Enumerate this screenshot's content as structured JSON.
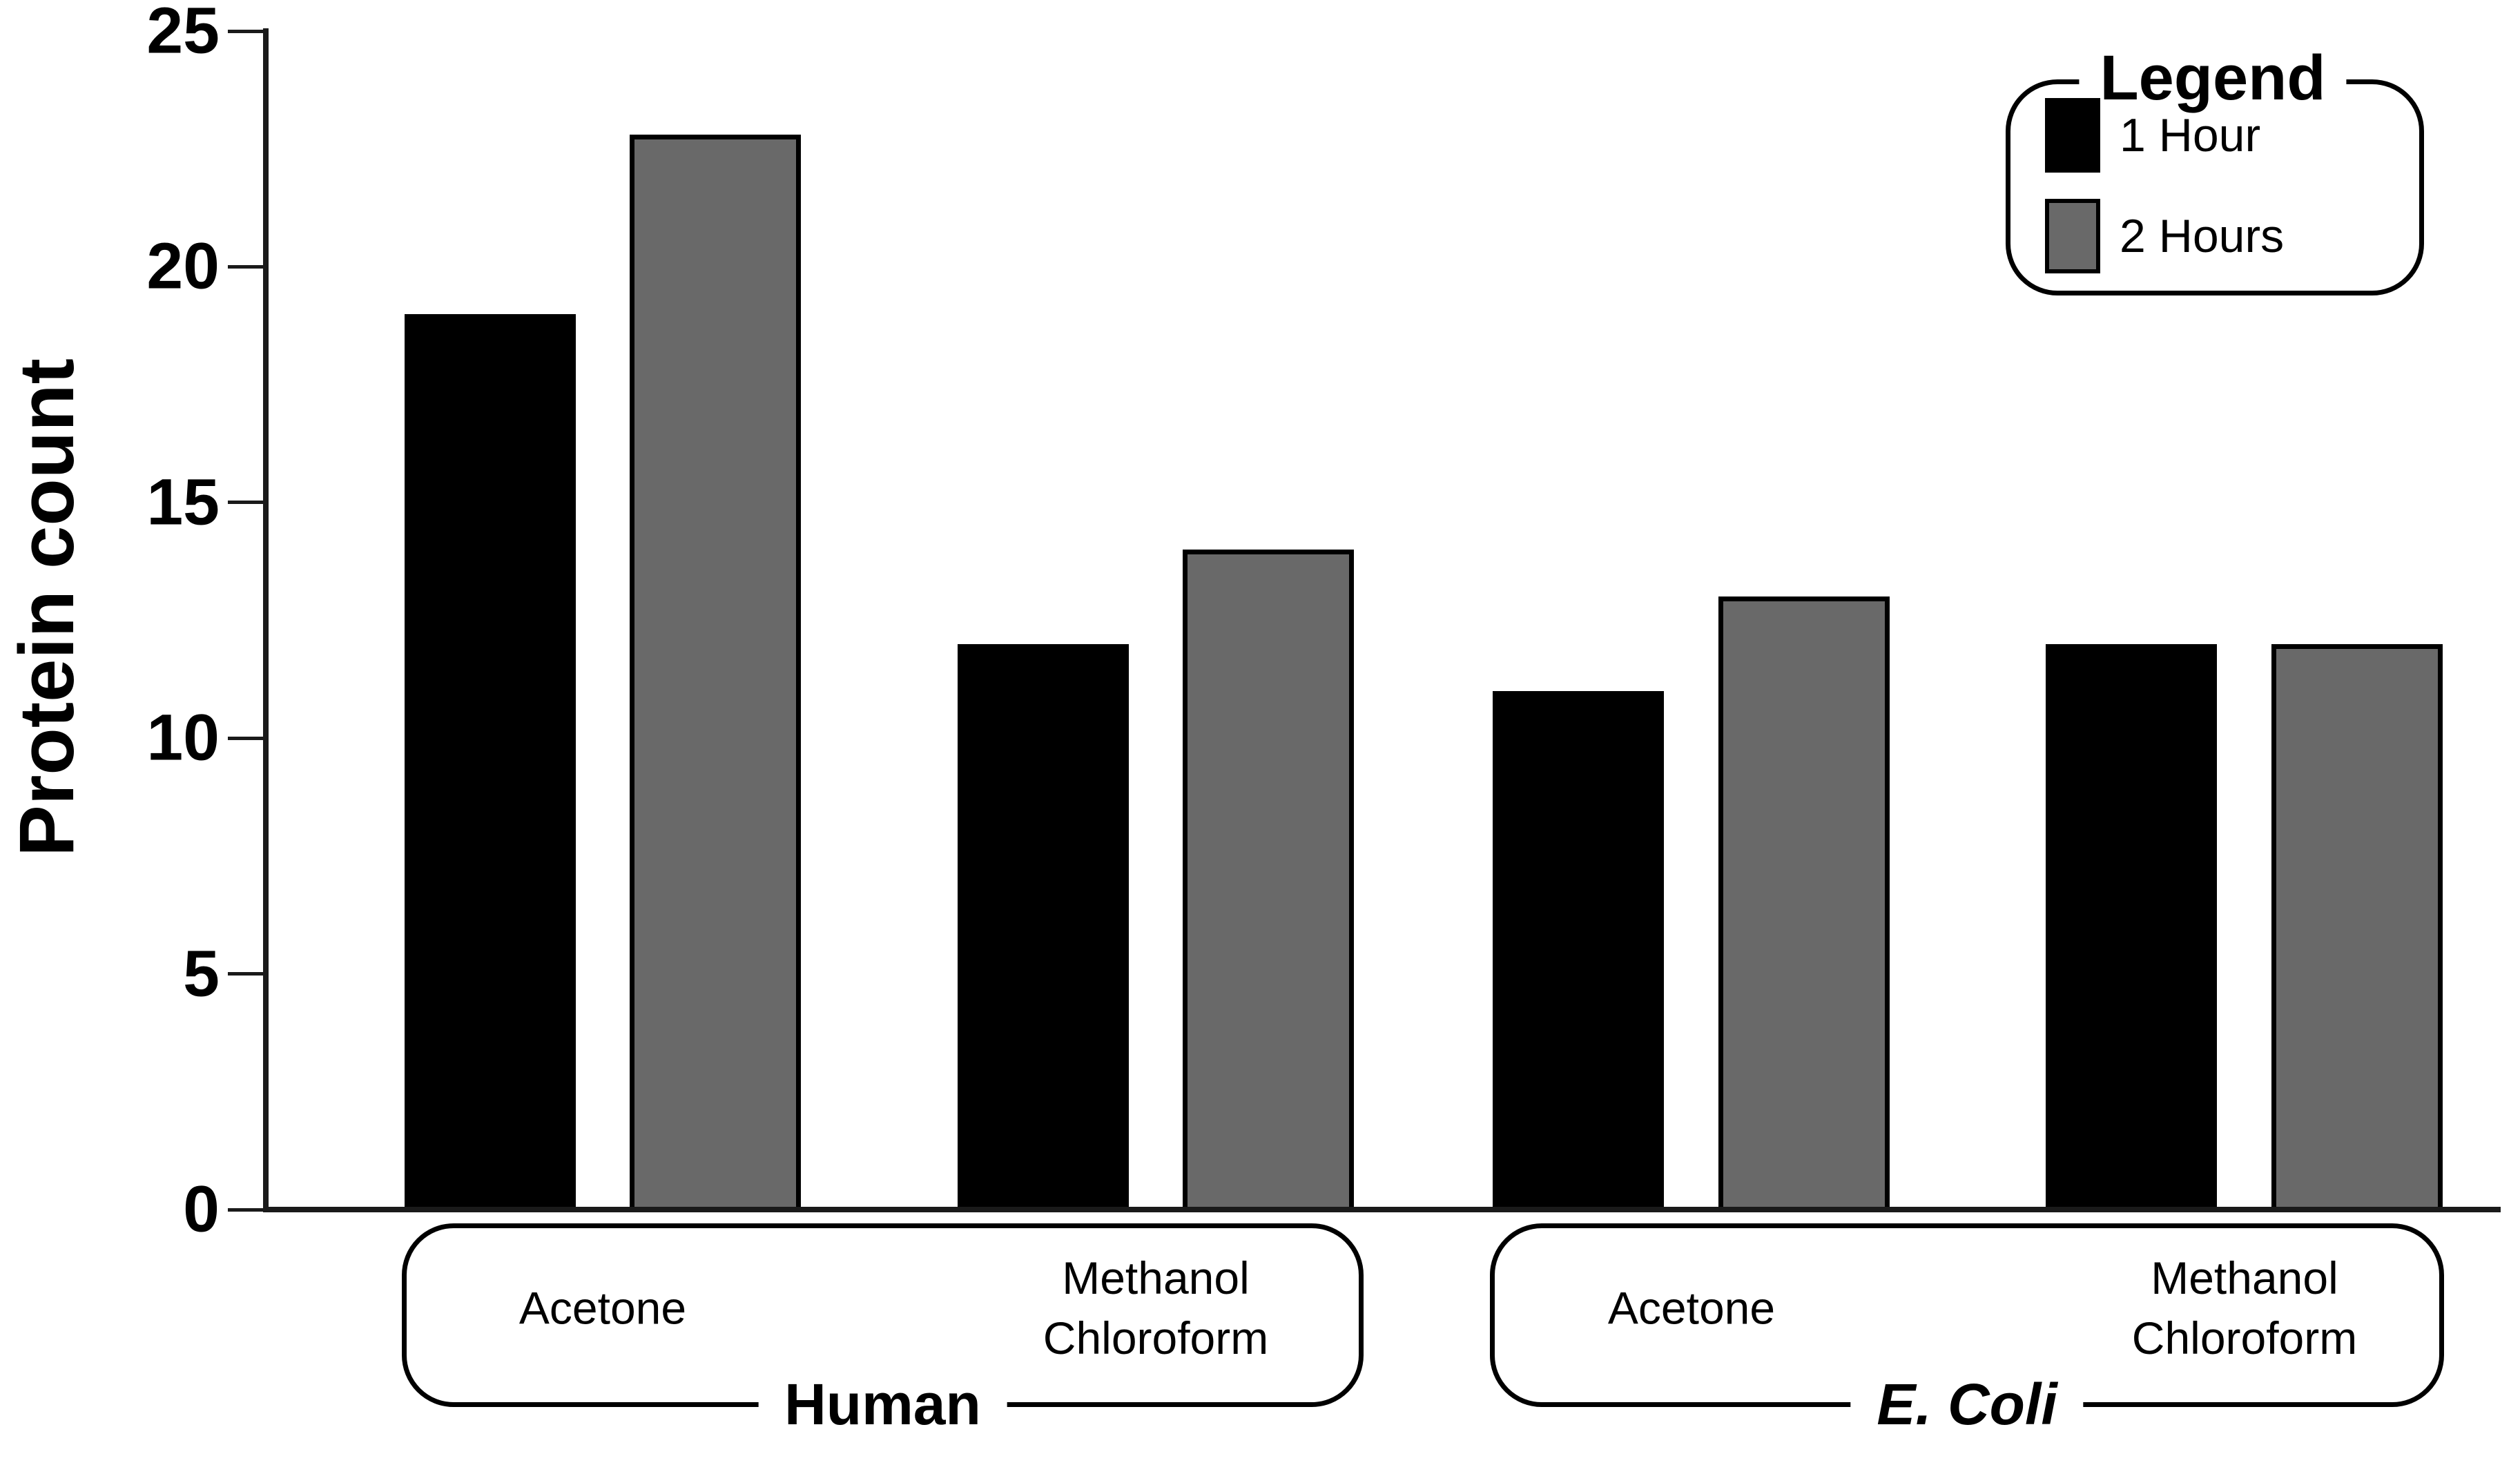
{
  "chart_data": {
    "type": "bar",
    "title": "",
    "ylabel": "Protein count",
    "xlabel": "",
    "ylim": [
      0,
      25
    ],
    "yticks": [
      "0",
      "5",
      "10",
      "15",
      "20",
      "25"
    ],
    "grid": false,
    "legend_position": "top-right",
    "legend": {
      "title": "Legend",
      "entries": [
        {
          "label": "1 Hour",
          "color": "#000000"
        },
        {
          "label": "2 Hours",
          "color": "#696969"
        }
      ]
    },
    "series_names": [
      "1 Hour",
      "2 Hours"
    ],
    "series_colors": [
      "#000000",
      "#696969"
    ],
    "groups": [
      {
        "name": "Human",
        "italic": false,
        "categories": [
          {
            "label": "Acetone",
            "lines": [
              "Acetone"
            ]
          },
          {
            "label": "Methanol Chloroform",
            "lines": [
              "Methanol",
              "Chloroform"
            ]
          }
        ],
        "series": [
          {
            "name": "1 Hour",
            "values": [
              19,
              12
            ]
          },
          {
            "name": "2 Hours",
            "values": [
              22.8,
              14
            ]
          }
        ]
      },
      {
        "name": "E. Coli",
        "italic": true,
        "categories": [
          {
            "label": "Acetone",
            "lines": [
              "Acetone"
            ]
          },
          {
            "label": "Methanol Chloroform",
            "lines": [
              "Methanol",
              "Chloroform"
            ]
          }
        ],
        "series": [
          {
            "name": "1 Hour",
            "values": [
              11,
              12
            ]
          },
          {
            "name": "2 Hours",
            "values": [
              13,
              12
            ]
          }
        ]
      }
    ],
    "colors": {
      "bar_black": "#000000",
      "bar_gray": "#696969",
      "axis": "#1a1a1a",
      "background": "#ffffff"
    }
  }
}
